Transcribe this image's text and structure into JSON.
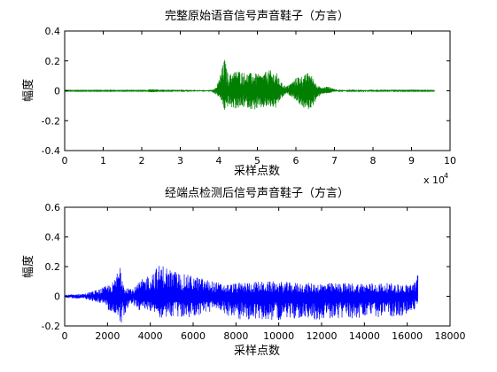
{
  "chart_data": [
    {
      "type": "line",
      "title": "完整原始语音信号声音鞋子（方言）",
      "xlabel": "采样点数",
      "ylabel": "幅度",
      "xlim": [
        0,
        100000
      ],
      "ylim": [
        -0.4,
        0.4
      ],
      "x_ticks": [
        0,
        10000,
        20000,
        30000,
        40000,
        50000,
        60000,
        70000,
        80000,
        90000,
        100000
      ],
      "x_tick_labels": [
        "0",
        "1",
        "2",
        "3",
        "4",
        "5",
        "6",
        "7",
        "8",
        "9",
        "10"
      ],
      "x_exponent_label": "x 10",
      "x_exponent_power": "4",
      "y_ticks": [
        -0.4,
        -0.2,
        0,
        0.2,
        0.4
      ],
      "y_tick_labels": [
        "-0.4",
        "-0.2",
        "0",
        "0.2",
        "0.4"
      ],
      "color": "#007f00",
      "grid": false,
      "signal_extent": [
        0,
        96000
      ],
      "envelope": {
        "x": [
          0,
          21000,
          22000,
          24000,
          25000,
          38000,
          39500,
          40500,
          41500,
          42500,
          43500,
          45000,
          47000,
          49000,
          51000,
          53000,
          55000,
          56000,
          57500,
          59000,
          60500,
          62000,
          63500,
          65000,
          66500,
          68000,
          69500,
          71000,
          96000
        ],
        "upper": [
          0.002,
          0.002,
          0.01,
          0.01,
          0.002,
          0.004,
          0.03,
          0.12,
          0.22,
          0.1,
          0.13,
          0.14,
          0.12,
          0.12,
          0.11,
          0.14,
          0.12,
          0.06,
          0.03,
          0.06,
          0.1,
          0.1,
          0.13,
          0.06,
          0.02,
          0.03,
          0.02,
          0.003,
          0.002
        ],
        "lower": [
          -0.002,
          -0.002,
          -0.01,
          -0.01,
          -0.002,
          -0.004,
          -0.03,
          -0.06,
          -0.14,
          -0.1,
          -0.12,
          -0.12,
          -0.11,
          -0.13,
          -0.12,
          -0.11,
          -0.12,
          -0.06,
          -0.02,
          -0.04,
          -0.08,
          -0.12,
          -0.13,
          -0.08,
          -0.02,
          -0.02,
          -0.01,
          -0.003,
          -0.002
        ]
      }
    },
    {
      "type": "line",
      "title": "经端点检测后信号声音鞋子（方言）",
      "xlabel": "采样点数",
      "ylabel": "幅度",
      "xlim": [
        0,
        18000
      ],
      "ylim": [
        -0.2,
        0.6
      ],
      "x_ticks": [
        0,
        2000,
        4000,
        6000,
        8000,
        10000,
        12000,
        14000,
        16000,
        18000
      ],
      "x_tick_labels": [
        "0",
        "2000",
        "4000",
        "6000",
        "8000",
        "10000",
        "12000",
        "14000",
        "16000",
        "18000"
      ],
      "y_ticks": [
        -0.2,
        0,
        0.2,
        0.4,
        0.6
      ],
      "y_tick_labels": [
        "-0.2",
        "0",
        "0.2",
        "0.4",
        "0.6"
      ],
      "color": "#0000ff",
      "grid": false,
      "signal_extent": [
        0,
        16500
      ],
      "envelope": {
        "x": [
          0,
          1000,
          1800,
          2300,
          2600,
          2800,
          3200,
          3500,
          4000,
          4500,
          5000,
          5500,
          6000,
          6500,
          7000,
          7500,
          8000,
          9000,
          10000,
          11000,
          12000,
          13000,
          14000,
          15000,
          16000,
          16300,
          16500
        ],
        "upper": [
          0.01,
          0.02,
          0.06,
          0.1,
          0.23,
          0.08,
          0.05,
          0.1,
          0.16,
          0.22,
          0.18,
          0.15,
          0.14,
          0.12,
          0.1,
          0.08,
          0.09,
          0.1,
          0.1,
          0.09,
          0.09,
          0.09,
          0.09,
          0.09,
          0.08,
          0.1,
          0.15
        ],
        "lower": [
          -0.01,
          -0.02,
          -0.05,
          -0.14,
          -0.2,
          -0.12,
          -0.06,
          -0.1,
          -0.1,
          -0.15,
          -0.14,
          -0.15,
          -0.14,
          -0.12,
          -0.1,
          -0.12,
          -0.16,
          -0.16,
          -0.16,
          -0.15,
          -0.16,
          -0.15,
          -0.15,
          -0.14,
          -0.13,
          -0.1,
          -0.05
        ]
      }
    }
  ]
}
